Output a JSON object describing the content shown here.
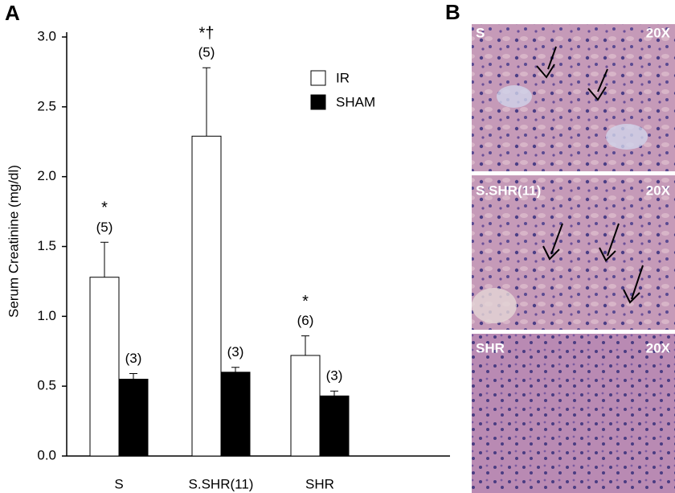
{
  "panel_labels": [
    "A",
    "B"
  ],
  "chart_data": {
    "type": "bar",
    "y_label": "Serum Creatinine (mg/dl)",
    "categories": [
      "S",
      "S.SHR(11)",
      "SHR"
    ],
    "series": [
      {
        "name": "IR",
        "color": "#ffffff",
        "values": [
          1.28,
          2.29,
          0.72
        ],
        "errors": [
          0.25,
          0.49,
          0.14
        ],
        "n_labels": [
          "(5)",
          "(5)",
          "(6)"
        ],
        "sig_labels": [
          "*",
          "*†",
          "*"
        ]
      },
      {
        "name": "SHAM",
        "color": "#000000",
        "values": [
          0.55,
          0.6,
          0.43
        ],
        "errors": [
          0.04,
          0.035,
          0.035
        ],
        "n_labels": [
          "(3)",
          "(3)",
          "(3)"
        ]
      }
    ],
    "ylim": [
      0,
      3.0
    ],
    "yticks": [
      {
        "value": 0,
        "label": "0.0"
      },
      0.5,
      {
        "value": 1,
        "label": "1.0"
      },
      1.5,
      {
        "value": 2,
        "label": "2.0"
      },
      2.5,
      {
        "value": 3,
        "label": "3.0"
      }
    ],
    "legend": "upper right"
  },
  "micrographs": [
    {
      "label": "S",
      "magnification": "20X"
    },
    {
      "label": "S.SHR(11)",
      "magnification": "20X"
    },
    {
      "label": "SHR",
      "magnification": "20X"
    }
  ]
}
